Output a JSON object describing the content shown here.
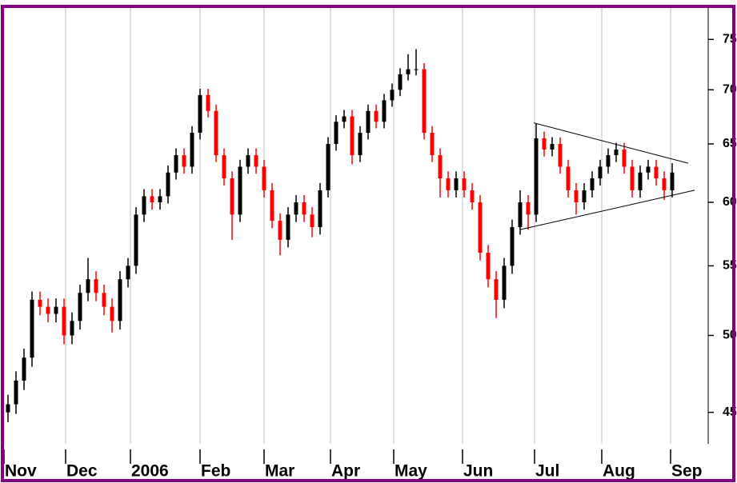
{
  "chart_data": {
    "type": "ohlc",
    "open": [
      45,
      45.5,
      47,
      48.5,
      52.5,
      52,
      51.5,
      52,
      50,
      51,
      53,
      54,
      53,
      52,
      51,
      54,
      55,
      59,
      60.5,
      60,
      60.5,
      62.5,
      64,
      63,
      66,
      69.5,
      68,
      64,
      62,
      59,
      63,
      64,
      63,
      61,
      58.5,
      57,
      59,
      60,
      59,
      58,
      61,
      65,
      67,
      67.5,
      64,
      66,
      68,
      67,
      69,
      70,
      71.5,
      72,
      72,
      66,
      64,
      62,
      61,
      62,
      61,
      60,
      56,
      54,
      52.5,
      55,
      58,
      60,
      59,
      65.5,
      64.5,
      65,
      63,
      61,
      60,
      61,
      62,
      63,
      64,
      64.5,
      63,
      61,
      62.5,
      63,
      62,
      61
    ],
    "high": [
      46.1,
      47.6,
      49.1,
      53.1,
      53.1,
      52.6,
      52.6,
      52.6,
      51.6,
      53.6,
      55.6,
      54.6,
      53.6,
      52.6,
      54.6,
      55.6,
      59.6,
      61.1,
      61.1,
      61.1,
      63.1,
      64.6,
      64.6,
      66.6,
      70.1,
      70.1,
      68.6,
      64.6,
      62.6,
      63.6,
      64.6,
      64.6,
      63.6,
      61.6,
      59.1,
      59.6,
      60.6,
      60.6,
      59.6,
      61.6,
      65.6,
      67.6,
      68.1,
      68.1,
      66.6,
      68.6,
      68.6,
      69.6,
      70.6,
      72.1,
      73.5,
      74,
      72.6,
      66.6,
      64.6,
      62.6,
      62.6,
      62.6,
      61.6,
      60.6,
      56.6,
      54.6,
      55.6,
      58.6,
      61,
      60.6,
      66.8,
      66.1,
      65.6,
      65.6,
      63.6,
      61.6,
      61.6,
      62.6,
      63.6,
      64.6,
      65.1,
      65.1,
      63.6,
      63.1,
      63.6,
      63.6,
      62.6,
      63.3
    ],
    "low": [
      44.4,
      44.9,
      46.4,
      47.9,
      51.4,
      50.9,
      50.9,
      49.4,
      49.4,
      50.4,
      52.4,
      52.4,
      51.4,
      50.2,
      50.4,
      53.4,
      54.4,
      58.4,
      59.4,
      59.4,
      59.9,
      61.9,
      62.4,
      62.4,
      65.4,
      67.4,
      63.4,
      61.4,
      57,
      58.4,
      62.4,
      62.4,
      60.4,
      57.9,
      55.8,
      56.4,
      58.4,
      58.4,
      57.2,
      57.4,
      60.4,
      64.4,
      66.4,
      63.2,
      63.4,
      65.4,
      66.4,
      66.4,
      68.4,
      69.4,
      70.9,
      71.4,
      65.4,
      63.4,
      60.4,
      60.4,
      60.4,
      60.4,
      59.4,
      55.4,
      53.4,
      51.2,
      51.9,
      54.4,
      57.4,
      57.8,
      58.4,
      63.9,
      63.9,
      62.4,
      60.4,
      59,
      59.4,
      60.4,
      61.4,
      62.4,
      63.4,
      62.4,
      60.4,
      60.4,
      61.9,
      61.4,
      60.2,
      60.4
    ],
    "close": [
      45.5,
      47,
      48.5,
      52.5,
      52,
      51.5,
      52,
      50,
      51,
      53,
      54,
      53,
      52,
      51,
      54,
      55,
      59,
      60.5,
      60,
      60.5,
      62.5,
      64,
      63,
      66,
      69.5,
      68,
      64,
      62,
      59,
      63,
      64,
      63,
      61,
      58.5,
      57,
      59,
      60,
      59,
      58,
      61,
      65,
      67,
      67.5,
      64,
      66,
      68,
      67,
      69,
      70,
      71.5,
      72,
      72,
      66,
      64,
      62,
      61,
      62,
      61,
      60,
      56,
      54,
      52.5,
      55,
      58,
      60,
      59,
      65.5,
      64.5,
      65,
      63,
      61,
      60,
      61,
      62,
      63,
      64,
      64.5,
      63,
      61,
      62.5,
      63,
      62,
      61,
      62.5
    ],
    "up_color": "#000000",
    "down_color": "#ff0000",
    "log_y": true,
    "ylim": [
      43.1,
      78.3
    ],
    "yticks": [
      45,
      50,
      55,
      60,
      65,
      70,
      75
    ],
    "xlim": [
      0,
      88
    ],
    "xticks": [
      {
        "value": 0,
        "label": "Nov"
      },
      {
        "value": 7.7,
        "label": "Dec"
      },
      {
        "value": 15.8,
        "label": "2006"
      },
      {
        "value": 24.5,
        "label": "Feb"
      },
      {
        "value": 32.5,
        "label": "Mar"
      },
      {
        "value": 40.8,
        "label": "Apr"
      },
      {
        "value": 48.7,
        "label": "May"
      },
      {
        "value": 57.3,
        "label": "Jun"
      },
      {
        "value": 66.3,
        "label": "Jul"
      },
      {
        "value": 74.7,
        "label": "Aug"
      },
      {
        "value": 83.3,
        "label": "Sep"
      }
    ],
    "grid": true,
    "trendlines": [
      {
        "x": [
          66.2,
          85.5
        ],
        "y": [
          66.9,
          63.3
        ]
      },
      {
        "x": [
          64.5,
          86.3
        ],
        "y": [
          57.8,
          61.0
        ]
      }
    ]
  }
}
